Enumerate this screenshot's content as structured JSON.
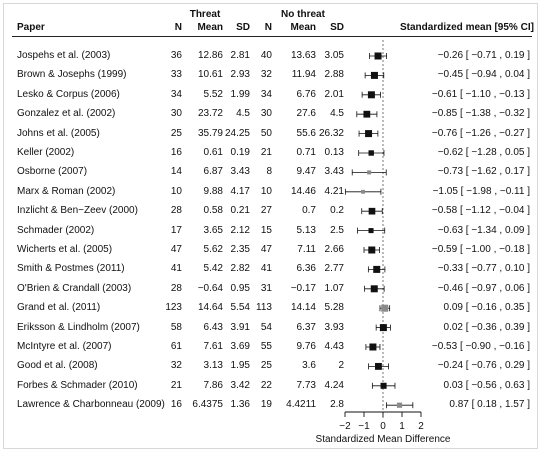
{
  "headers": {
    "paper": "Paper",
    "threat_group": "Threat",
    "no_threat_group": "No threat",
    "n": "N",
    "mean": "Mean",
    "sd": "SD",
    "effect": "Standardized mean [95% CI]"
  },
  "rows": [
    {
      "paper": "Jospehs et al. (2003)",
      "t_n": "36",
      "t_mean": "12.86",
      "t_sd": "2.81",
      "nt_n": "40",
      "nt_mean": "13.63",
      "nt_sd": "3.05",
      "ci_text": "−0.26 [ −0.71 , 0.19 ]"
    },
    {
      "paper": "Brown & Josephs (1999)",
      "t_n": "33",
      "t_mean": "10.61",
      "t_sd": "2.93",
      "nt_n": "32",
      "nt_mean": "11.94",
      "nt_sd": "2.88",
      "ci_text": "−0.45 [ −0.94 , 0.04 ]"
    },
    {
      "paper": "Lesko & Corpus (2006)",
      "t_n": "34",
      "t_mean": "5.52",
      "t_sd": "1.99",
      "nt_n": "34",
      "nt_mean": "6.76",
      "nt_sd": "2.01",
      "ci_text": "−0.61 [ −1.10 , −0.13 ]"
    },
    {
      "paper": "Gonzalez et al. (2002)",
      "t_n": "30",
      "t_mean": "23.72",
      "t_sd": "4.5",
      "nt_n": "30",
      "nt_mean": "27.6",
      "nt_sd": "4.5",
      "ci_text": "−0.85 [ −1.38 , −0.32 ]"
    },
    {
      "paper": "Johns et al. (2005)",
      "t_n": "25",
      "t_mean": "35.79",
      "t_sd": "24.25",
      "nt_n": "50",
      "nt_mean": "55.6",
      "nt_sd": "26.32",
      "ci_text": "−0.76 [ −1.26 , −0.27 ]"
    },
    {
      "paper": "Keller (2002)",
      "t_n": "16",
      "t_mean": "0.61",
      "t_sd": "0.19",
      "nt_n": "21",
      "nt_mean": "0.71",
      "nt_sd": "0.13",
      "ci_text": "−0.62 [ −1.28 , 0.05 ]"
    },
    {
      "paper": "Osborne (2007)",
      "t_n": "14",
      "t_mean": "6.87",
      "t_sd": "3.43",
      "nt_n": "8",
      "nt_mean": "9.47",
      "nt_sd": "3.43",
      "ci_text": "−0.73 [ −1.62 , 0.17 ]"
    },
    {
      "paper": "Marx & Roman (2002)",
      "t_n": "10",
      "t_mean": "9.88",
      "t_sd": "4.17",
      "nt_n": "10",
      "nt_mean": "14.46",
      "nt_sd": "4.21",
      "ci_text": "−1.05 [ −1.98 , −0.11 ]"
    },
    {
      "paper": "Inzlicht & Ben−Zeev (2000)",
      "t_n": "28",
      "t_mean": "0.58",
      "t_sd": "0.21",
      "nt_n": "27",
      "nt_mean": "0.7",
      "nt_sd": "0.2",
      "ci_text": "−0.58 [ −1.12 , −0.04 ]"
    },
    {
      "paper": "Schmader (2002)",
      "t_n": "17",
      "t_mean": "3.65",
      "t_sd": "2.12",
      "nt_n": "15",
      "nt_mean": "5.13",
      "nt_sd": "2.5",
      "ci_text": "−0.63 [ −1.34 , 0.09 ]"
    },
    {
      "paper": "Wicherts et al. (2005)",
      "t_n": "47",
      "t_mean": "5.62",
      "t_sd": "2.35",
      "nt_n": "47",
      "nt_mean": "7.11",
      "nt_sd": "2.66",
      "ci_text": "−0.59 [ −1.00 , −0.18 ]"
    },
    {
      "paper": "Smith & Postmes (2011)",
      "t_n": "41",
      "t_mean": "5.42",
      "t_sd": "2.82",
      "nt_n": "41",
      "nt_mean": "6.36",
      "nt_sd": "2.77",
      "ci_text": "−0.33 [ −0.77 , 0.10 ]"
    },
    {
      "paper": "O'Brien & Crandall (2003)",
      "t_n": "28",
      "t_mean": "−0.64",
      "t_sd": "0.95",
      "nt_n": "31",
      "nt_mean": "−0.17",
      "nt_sd": "1.07",
      "ci_text": "−0.46 [ −0.97 , 0.06 ]"
    },
    {
      "paper": "Grand et al. (2011)",
      "t_n": "123",
      "t_mean": "14.64",
      "t_sd": "5.54",
      "nt_n": "113",
      "nt_mean": "14.14",
      "nt_sd": "5.28",
      "ci_text": "0.09 [ −0.16 , 0.35 ]"
    },
    {
      "paper": "Eriksson & Lindholm (2007)",
      "t_n": "58",
      "t_mean": "6.43",
      "t_sd": "3.91",
      "nt_n": "54",
      "nt_mean": "6.37",
      "nt_sd": "3.93",
      "ci_text": "0.02 [ −0.36 , 0.39 ]"
    },
    {
      "paper": "McIntyre et al. (2007)",
      "t_n": "61",
      "t_mean": "7.61",
      "t_sd": "3.69",
      "nt_n": "55",
      "nt_mean": "9.76",
      "nt_sd": "4.43",
      "ci_text": "−0.53 [ −0.90 , −0.16 ]"
    },
    {
      "paper": "Good et al. (2008)",
      "t_n": "32",
      "t_mean": "3.13",
      "t_sd": "1.95",
      "nt_n": "25",
      "nt_mean": "3.6",
      "nt_sd": "2",
      "ci_text": "−0.24 [ −0.76 , 0.29 ]"
    },
    {
      "paper": "Forbes & Schmader (2010)",
      "t_n": "21",
      "t_mean": "7.86",
      "t_sd": "3.42",
      "nt_n": "22",
      "nt_mean": "7.73",
      "nt_sd": "4.24",
      "ci_text": "0.03 [ −0.56 , 0.63 ]"
    },
    {
      "paper": "Lawrence & Charbonneau (2009)",
      "t_n": "16",
      "t_mean": "6.4375",
      "t_sd": "1.36",
      "nt_n": "19",
      "nt_mean": "4.4211",
      "nt_sd": "2.8",
      "ci_text": "0.87 [ 0.18 , 1.57 ]"
    }
  ],
  "chart_data": {
    "type": "forest",
    "xlabel": "Standardized Mean Difference",
    "xlim": [
      -2,
      2
    ],
    "xticks": [
      -2,
      -1,
      0,
      1,
      2
    ],
    "x_tick_labels": [
      "−2",
      "−1",
      "0",
      "1",
      "2"
    ],
    "reference_line": 0,
    "marker_color": "#111111",
    "gray_marker_color": "#8a8a8a",
    "studies": [
      {
        "label": "Jospehs et al. (2003)",
        "estimate": -0.26,
        "lower": -0.71,
        "upper": 0.19,
        "gray": false
      },
      {
        "label": "Brown & Josephs (1999)",
        "estimate": -0.45,
        "lower": -0.94,
        "upper": 0.04,
        "gray": false
      },
      {
        "label": "Lesko & Corpus (2006)",
        "estimate": -0.61,
        "lower": -1.1,
        "upper": -0.13,
        "gray": false
      },
      {
        "label": "Gonzalez et al. (2002)",
        "estimate": -0.85,
        "lower": -1.38,
        "upper": -0.32,
        "gray": false
      },
      {
        "label": "Johns et al. (2005)",
        "estimate": -0.76,
        "lower": -1.26,
        "upper": -0.27,
        "gray": false
      },
      {
        "label": "Keller (2002)",
        "estimate": -0.62,
        "lower": -1.28,
        "upper": 0.05,
        "gray": false
      },
      {
        "label": "Osborne (2007)",
        "estimate": -0.73,
        "lower": -1.62,
        "upper": 0.17,
        "gray": true
      },
      {
        "label": "Marx & Roman (2002)",
        "estimate": -1.05,
        "lower": -1.98,
        "upper": -0.11,
        "gray": true
      },
      {
        "label": "Inzlicht & Ben−Zeev (2000)",
        "estimate": -0.58,
        "lower": -1.12,
        "upper": -0.04,
        "gray": false
      },
      {
        "label": "Schmader (2002)",
        "estimate": -0.63,
        "lower": -1.34,
        "upper": 0.09,
        "gray": false
      },
      {
        "label": "Wicherts et al. (2005)",
        "estimate": -0.59,
        "lower": -1.0,
        "upper": -0.18,
        "gray": false
      },
      {
        "label": "Smith & Postmes (2011)",
        "estimate": -0.33,
        "lower": -0.77,
        "upper": 0.1,
        "gray": false
      },
      {
        "label": "O'Brien & Crandall (2003)",
        "estimate": -0.46,
        "lower": -0.97,
        "upper": 0.06,
        "gray": false
      },
      {
        "label": "Grand et al. (2011)",
        "estimate": 0.09,
        "lower": -0.16,
        "upper": 0.35,
        "gray": true
      },
      {
        "label": "Eriksson & Lindholm (2007)",
        "estimate": 0.02,
        "lower": -0.36,
        "upper": 0.39,
        "gray": false
      },
      {
        "label": "McIntyre et al. (2007)",
        "estimate": -0.53,
        "lower": -0.9,
        "upper": -0.16,
        "gray": false
      },
      {
        "label": "Good et al. (2008)",
        "estimate": -0.24,
        "lower": -0.76,
        "upper": 0.29,
        "gray": false
      },
      {
        "label": "Forbes & Schmader (2010)",
        "estimate": 0.03,
        "lower": -0.56,
        "upper": 0.63,
        "gray": false
      },
      {
        "label": "Lawrence & Charbonneau (2009)",
        "estimate": 0.87,
        "lower": 0.18,
        "upper": 1.57,
        "gray": true
      }
    ]
  }
}
